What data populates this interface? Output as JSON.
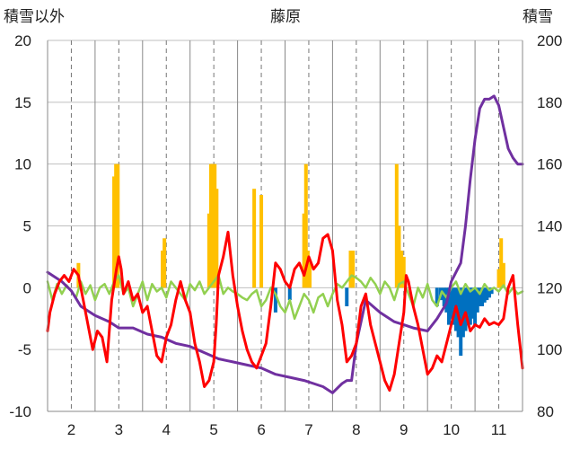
{
  "chart_data": {
    "type": "line",
    "title": "藤原",
    "ylabel_left": "積雪以外",
    "ylabel_right": "積雪",
    "ylim_left": [
      -10,
      20
    ],
    "ylim_right": [
      80,
      200
    ],
    "yticks_left": [
      "20",
      "15",
      "10",
      "5",
      "0",
      "-5",
      "-10"
    ],
    "yticks_right": [
      "200",
      "180",
      "160",
      "140",
      "120",
      "100",
      "80"
    ],
    "xlim": [
      1.5,
      11.5
    ],
    "xticks": [
      "2",
      "3",
      "4",
      "5",
      "6",
      "7",
      "8",
      "9",
      "10",
      "11"
    ],
    "grid": true,
    "colors": {
      "red": "#ff0000",
      "purple": "#7030a0",
      "green": "#92d050",
      "orange": "#ffc000",
      "blue": "#0070c0",
      "axis": "#888888",
      "grid": "#999999"
    },
    "series": [
      {
        "color": "#ff0000",
        "axis": "left",
        "type": "line",
        "x": [
          1.5,
          1.55,
          1.65,
          1.75,
          1.85,
          1.95,
          2.05,
          2.15,
          2.25,
          2.35,
          2.45,
          2.55,
          2.65,
          2.75,
          2.85,
          2.95,
          3.0,
          3.05,
          3.1,
          3.2,
          3.3,
          3.4,
          3.5,
          3.6,
          3.7,
          3.8,
          3.9,
          4.0,
          4.1,
          4.2,
          4.3,
          4.4,
          4.5,
          4.6,
          4.7,
          4.8,
          4.9,
          5.0,
          5.05,
          5.1,
          5.2,
          5.3,
          5.4,
          5.5,
          5.6,
          5.7,
          5.8,
          5.9,
          6.0,
          6.1,
          6.2,
          6.3,
          6.4,
          6.5,
          6.6,
          6.7,
          6.8,
          6.9,
          7.0,
          7.1,
          7.2,
          7.3,
          7.4,
          7.5,
          7.6,
          7.7,
          7.8,
          7.9,
          8.0,
          8.1,
          8.2,
          8.3,
          8.4,
          8.5,
          8.6,
          8.7,
          8.8,
          8.9,
          9.0,
          9.05,
          9.1,
          9.2,
          9.3,
          9.4,
          9.5,
          9.6,
          9.7,
          9.8,
          9.9,
          10.0,
          10.1,
          10.2,
          10.3,
          10.4,
          10.5,
          10.6,
          10.7,
          10.8,
          10.9,
          11.0,
          11.1,
          11.2,
          11.3,
          11.4,
          11.5
        ],
        "values": [
          -3.5,
          -2.0,
          -0.5,
          0.5,
          1.0,
          0.5,
          1.5,
          1.0,
          -1.0,
          -3.0,
          -5.0,
          -3.5,
          -4.0,
          -6.0,
          -1.0,
          1.5,
          2.5,
          1.5,
          -0.5,
          0.5,
          -1.0,
          -0.5,
          -2.0,
          -1.5,
          -3.5,
          -5.5,
          -6.0,
          -4.0,
          -3.0,
          -1.0,
          0.5,
          -1.0,
          -2.0,
          -4.5,
          -6.0,
          -8.0,
          -7.5,
          -6.0,
          -3.0,
          1.0,
          2.5,
          4.5,
          1.0,
          -1.5,
          -3.5,
          -5.0,
          -6.0,
          -6.5,
          -5.5,
          -4.5,
          -1.5,
          2.0,
          1.5,
          0.5,
          0.0,
          1.5,
          2.0,
          1.0,
          2.5,
          1.5,
          2.0,
          4.0,
          4.3,
          3.0,
          -1.0,
          -3.0,
          -6.0,
          -5.5,
          -4.5,
          -1.5,
          -0.5,
          -3.0,
          -4.5,
          -6.0,
          -7.5,
          -8.3,
          -7.0,
          -4.5,
          -2.0,
          1.0,
          0.5,
          -1.5,
          -3.0,
          -5.0,
          -7.0,
          -6.5,
          -5.5,
          -6.0,
          -4.5,
          -3.0,
          -1.5,
          -3.0,
          -2.0,
          -3.5,
          -3.0,
          -3.2,
          -2.5,
          -3.0,
          -2.8,
          -3.0,
          -2.5,
          0.0,
          1.0,
          -3.0,
          -6.5
        ]
      },
      {
        "color": "#7030a0",
        "axis": "right",
        "type": "line",
        "x": [
          1.5,
          1.8,
          2.0,
          2.2,
          2.5,
          2.8,
          3.0,
          3.3,
          3.6,
          3.9,
          4.2,
          4.5,
          4.8,
          5.1,
          5.4,
          5.7,
          6.0,
          6.3,
          6.6,
          6.9,
          7.1,
          7.3,
          7.5,
          7.7,
          7.8,
          7.9,
          8.0,
          8.2,
          8.5,
          8.8,
          9.0,
          9.2,
          9.5,
          9.7,
          9.9,
          10.0,
          10.1,
          10.2,
          10.3,
          10.4,
          10.5,
          10.6,
          10.7,
          10.8,
          10.9,
          11.0,
          11.1,
          11.2,
          11.3,
          11.4,
          11.5
        ],
        "values": [
          125,
          122,
          119,
          114,
          111,
          109,
          107,
          107,
          105,
          104,
          102,
          101,
          99,
          97,
          96,
          95,
          94,
          92,
          91,
          90,
          89,
          88,
          86,
          89,
          90,
          90,
          102,
          116,
          112,
          109,
          108,
          107,
          106,
          110,
          115,
          122,
          125,
          128,
          140,
          155,
          168,
          178,
          181,
          181,
          182,
          179,
          172,
          165,
          162,
          160,
          160
        ]
      },
      {
        "color": "#92d050",
        "axis": "left",
        "type": "line",
        "x": [
          1.5,
          1.6,
          1.7,
          1.8,
          1.9,
          2.0,
          2.1,
          2.2,
          2.3,
          2.4,
          2.5,
          2.6,
          2.7,
          2.8,
          2.9,
          3.0,
          3.1,
          3.2,
          3.3,
          3.4,
          3.5,
          3.6,
          3.7,
          3.8,
          3.9,
          4.0,
          4.1,
          4.2,
          4.3,
          4.4,
          4.5,
          4.6,
          4.7,
          4.8,
          4.9,
          5.0,
          5.1,
          5.2,
          5.3,
          5.4,
          5.5,
          5.6,
          5.7,
          5.8,
          5.9,
          6.0,
          6.1,
          6.2,
          6.3,
          6.4,
          6.5,
          6.6,
          6.7,
          6.8,
          6.9,
          7.0,
          7.1,
          7.2,
          7.3,
          7.4,
          7.5,
          7.6,
          7.7,
          7.8,
          7.9,
          8.0,
          8.1,
          8.2,
          8.3,
          8.4,
          8.5,
          8.6,
          8.7,
          8.8,
          8.9,
          9.0,
          9.1,
          9.2,
          9.3,
          9.4,
          9.5,
          9.6,
          9.7,
          9.8,
          9.9,
          10.0,
          10.1,
          10.2,
          10.3,
          10.4,
          10.5,
          10.6,
          10.7,
          10.8,
          10.9,
          11.0,
          11.1,
          11.2,
          11.3,
          11.4,
          11.5
        ],
        "values": [
          0.5,
          -1.0,
          0.3,
          -0.5,
          0.2,
          -0.3,
          -0.8,
          0.5,
          -0.5,
          0.2,
          -1.0,
          0.0,
          0.3,
          -0.5,
          0.5,
          1.0,
          -0.5,
          0.0,
          -1.5,
          -0.5,
          0.5,
          -1.0,
          0.3,
          -0.3,
          0.0,
          -0.8,
          0.5,
          0.0,
          -0.5,
          -1.0,
          0.3,
          -0.2,
          0.5,
          -0.5,
          0.0,
          0.5,
          1.0,
          -0.5,
          0.0,
          -0.3,
          -0.5,
          -0.8,
          -1.0,
          -0.5,
          -0.2,
          -1.5,
          -1.0,
          0.0,
          -0.5,
          -1.5,
          -2.0,
          -1.0,
          -2.5,
          -1.5,
          -0.5,
          -1.0,
          -2.0,
          -0.8,
          -0.5,
          -1.5,
          -0.5,
          0.3,
          0.0,
          0.5,
          1.0,
          0.8,
          0.5,
          0.0,
          0.8,
          0.3,
          -0.5,
          0.5,
          0.0,
          -1.0,
          0.3,
          0.5,
          -0.5,
          -1.5,
          0.0,
          -0.8,
          0.3,
          -1.0,
          -1.5,
          -0.3,
          -0.8,
          0.0,
          0.5,
          -0.5,
          0.3,
          -0.3,
          0.0,
          -0.5,
          0.3,
          -0.2,
          0.0,
          -0.3,
          0.2,
          -0.5,
          0.0,
          -0.5,
          -0.3
        ]
      },
      {
        "color": "#ffc000",
        "axis": "left",
        "type": "bar",
        "x": [
          2.15,
          2.9,
          2.94,
          2.98,
          3.92,
          3.96,
          4.9,
          4.94,
          4.98,
          5.02,
          5.06,
          5.85,
          6.0,
          6.9,
          6.94,
          6.98,
          7.02,
          7.88,
          7.93,
          8.85,
          8.9,
          8.95,
          9.0,
          11.0,
          11.05,
          11.1
        ],
        "values": [
          2.0,
          9.0,
          10.0,
          10.0,
          3.0,
          4.0,
          6.0,
          10.0,
          10.0,
          10.0,
          8.0,
          8.0,
          7.5,
          6.0,
          10.0,
          3.0,
          2.0,
          3.0,
          3.0,
          10.0,
          5.0,
          3.0,
          2.5,
          1.5,
          4.0,
          2.0
        ]
      },
      {
        "color": "#0070c0",
        "axis": "left",
        "type": "bar",
        "x": [
          6.3,
          6.6,
          7.8,
          9.7,
          9.78,
          9.85,
          9.9,
          9.95,
          10.0,
          10.05,
          10.1,
          10.15,
          10.2,
          10.25,
          10.3,
          10.35,
          10.4,
          10.45,
          10.5,
          10.55,
          10.6,
          10.65,
          10.7,
          10.75,
          10.8,
          10.85
        ],
        "values": [
          -2.0,
          -1.0,
          -1.5,
          -1.5,
          -1.0,
          -1.5,
          -2.0,
          -3.0,
          -2.5,
          -3.0,
          -3.5,
          -4.0,
          -5.5,
          -4.0,
          -3.5,
          -3.0,
          -3.0,
          -2.5,
          -3.0,
          -2.0,
          -1.5,
          -1.5,
          -1.2,
          -1.0,
          -0.8,
          -0.5
        ]
      }
    ]
  }
}
